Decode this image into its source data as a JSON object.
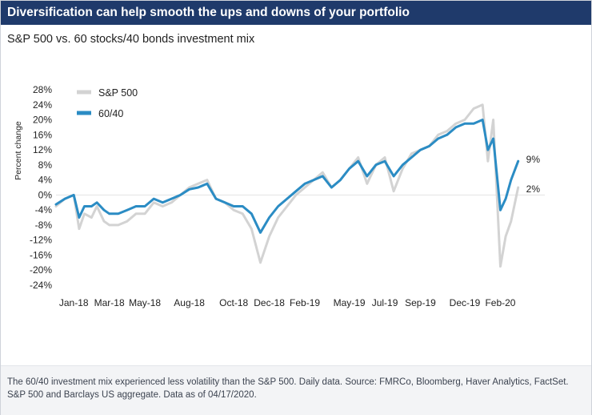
{
  "header": {
    "title": "Diversification can help smooth the ups and downs of your portfolio",
    "subtitle": "S&P 500 vs. 60 stocks/40 bonds investment mix"
  },
  "footer": {
    "note": "The 60/40 investment mix experienced less volatility than the S&P 500. Daily data. Source: FMRCo, Bloomberg, Haver Analytics, FactSet. S&P 500 and Barclays US aggregate. Data as of 04/17/2020."
  },
  "colors": {
    "sp500": "#d3d3d3",
    "mix6040": "#2b8cc4",
    "title_bar": "#1f3a6b"
  },
  "chart_data": {
    "type": "line",
    "ylabel": "Percent change",
    "ylim": [
      -24,
      28
    ],
    "yticks": [
      28,
      24,
      20,
      16,
      12,
      8,
      4,
      0,
      -4,
      -8,
      -12,
      -16,
      -20,
      -24
    ],
    "x_tick_labels": [
      "Jan-18",
      "Mar-18",
      "May-18",
      "Aug-18",
      "Oct-18",
      "Dec-18",
      "Feb-19",
      "May-19",
      "Jul-19",
      "Sep-19",
      "Dec-19",
      "Feb-20"
    ],
    "x_tick_positions": [
      1.0,
      3.0,
      5.0,
      7.5,
      10.0,
      12.0,
      14.0,
      16.5,
      18.5,
      20.5,
      23.0,
      25.0
    ],
    "x_range": [
      0,
      27.5
    ],
    "legend": [
      {
        "name": "S&P 500",
        "color_key": "sp500"
      },
      {
        "name": "60/40",
        "color_key": "mix6040"
      }
    ],
    "series": [
      {
        "name": "S&P 500",
        "end_label": "2%",
        "points": [
          [
            0,
            -3
          ],
          [
            0.5,
            -1
          ],
          [
            1.0,
            0
          ],
          [
            1.3,
            -9
          ],
          [
            1.6,
            -5
          ],
          [
            2.0,
            -6
          ],
          [
            2.3,
            -3
          ],
          [
            2.7,
            -7
          ],
          [
            3.0,
            -8
          ],
          [
            3.5,
            -8
          ],
          [
            4.0,
            -7
          ],
          [
            4.5,
            -5
          ],
          [
            5.0,
            -5
          ],
          [
            5.5,
            -2
          ],
          [
            6.0,
            -3
          ],
          [
            6.5,
            -2
          ],
          [
            7.0,
            0
          ],
          [
            7.5,
            2
          ],
          [
            8.0,
            3
          ],
          [
            8.5,
            4
          ],
          [
            9.0,
            -1
          ],
          [
            9.5,
            -2
          ],
          [
            10.0,
            -4
          ],
          [
            10.5,
            -5
          ],
          [
            11.0,
            -9
          ],
          [
            11.5,
            -18
          ],
          [
            12.0,
            -11
          ],
          [
            12.5,
            -6
          ],
          [
            13.0,
            -3
          ],
          [
            13.5,
            0
          ],
          [
            14.0,
            2
          ],
          [
            14.5,
            4
          ],
          [
            15.0,
            6
          ],
          [
            15.5,
            2
          ],
          [
            16.0,
            4
          ],
          [
            16.5,
            7
          ],
          [
            17.0,
            10
          ],
          [
            17.5,
            3
          ],
          [
            18.0,
            8
          ],
          [
            18.5,
            10
          ],
          [
            19.0,
            1
          ],
          [
            19.5,
            7
          ],
          [
            20.0,
            11
          ],
          [
            20.5,
            12
          ],
          [
            21.0,
            13
          ],
          [
            21.5,
            16
          ],
          [
            22.0,
            17
          ],
          [
            22.5,
            19
          ],
          [
            23.0,
            20
          ],
          [
            23.5,
            23
          ],
          [
            24.0,
            24
          ],
          [
            24.3,
            9
          ],
          [
            24.6,
            20
          ],
          [
            25.0,
            -19
          ],
          [
            25.3,
            -11
          ],
          [
            25.6,
            -7
          ],
          [
            26.0,
            2
          ]
        ]
      },
      {
        "name": "60/40",
        "end_label": "9%",
        "points": [
          [
            0,
            -2.5
          ],
          [
            0.5,
            -1
          ],
          [
            1.0,
            0
          ],
          [
            1.3,
            -6
          ],
          [
            1.6,
            -3
          ],
          [
            2.0,
            -3
          ],
          [
            2.3,
            -2
          ],
          [
            2.7,
            -4
          ],
          [
            3.0,
            -5
          ],
          [
            3.5,
            -5
          ],
          [
            4.0,
            -4
          ],
          [
            4.5,
            -3
          ],
          [
            5.0,
            -3
          ],
          [
            5.5,
            -1
          ],
          [
            6.0,
            -2
          ],
          [
            6.5,
            -1
          ],
          [
            7.0,
            0
          ],
          [
            7.5,
            1.5
          ],
          [
            8.0,
            2
          ],
          [
            8.5,
            3
          ],
          [
            9.0,
            -1
          ],
          [
            9.5,
            -2
          ],
          [
            10.0,
            -3
          ],
          [
            10.5,
            -3
          ],
          [
            11.0,
            -5
          ],
          [
            11.5,
            -10
          ],
          [
            12.0,
            -6
          ],
          [
            12.5,
            -3
          ],
          [
            13.0,
            -1
          ],
          [
            13.5,
            1
          ],
          [
            14.0,
            3
          ],
          [
            14.5,
            4
          ],
          [
            15.0,
            5
          ],
          [
            15.5,
            2
          ],
          [
            16.0,
            4
          ],
          [
            16.5,
            7
          ],
          [
            17.0,
            9
          ],
          [
            17.5,
            5
          ],
          [
            18.0,
            8
          ],
          [
            18.5,
            9
          ],
          [
            19.0,
            5
          ],
          [
            19.5,
            8
          ],
          [
            20.0,
            10
          ],
          [
            20.5,
            12
          ],
          [
            21.0,
            13
          ],
          [
            21.5,
            15
          ],
          [
            22.0,
            16
          ],
          [
            22.5,
            18
          ],
          [
            23.0,
            19
          ],
          [
            23.5,
            19
          ],
          [
            24.0,
            20
          ],
          [
            24.3,
            12
          ],
          [
            24.6,
            15
          ],
          [
            25.0,
            -4
          ],
          [
            25.3,
            -1
          ],
          [
            25.6,
            4
          ],
          [
            26.0,
            9
          ]
        ]
      }
    ]
  }
}
